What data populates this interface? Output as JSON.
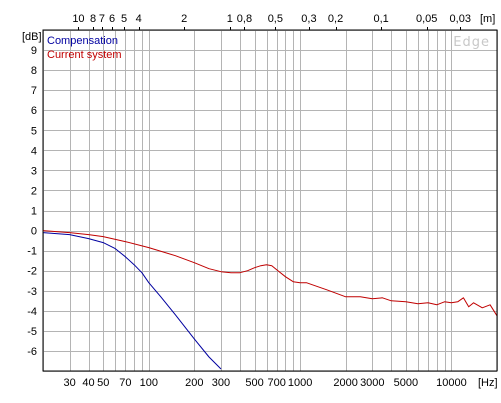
{
  "chart_data": {
    "type": "line",
    "x_scale": "log",
    "xlim": [
      20,
      20000
    ],
    "ylim": [
      -7,
      10
    ],
    "grid": true,
    "legend_placement": "top-left",
    "watermark": "Edge",
    "bottom_axis": {
      "unit": "[Hz]",
      "tick_values": [
        30,
        40,
        50,
        70,
        100,
        200,
        300,
        500,
        700,
        1000,
        2000,
        3000,
        5000,
        10000
      ],
      "tick_labels": [
        "30",
        "40",
        "50",
        "70",
        "100",
        "200",
        "300",
        "500",
        "700",
        "1000",
        "2000",
        "3000",
        "5000",
        "10000"
      ]
    },
    "top_axis": {
      "unit": "[m]",
      "quantity": "wavelength",
      "tick_values": [
        10,
        8,
        7,
        6,
        5,
        4,
        2,
        1,
        0.8,
        0.5,
        0.3,
        0.2,
        0.1,
        0.05,
        0.03
      ],
      "tick_labels": [
        "10",
        "8",
        "7",
        "6",
        "5",
        "4",
        "2",
        "1",
        "0,8",
        "0,5",
        "0,3",
        "0,2",
        "0,1",
        "0,05",
        "0,03"
      ]
    },
    "left_axis": {
      "unit": "[dB]",
      "tick_values": [
        9,
        8,
        7,
        6,
        5,
        4,
        3,
        2,
        1,
        0,
        -1,
        -2,
        -3,
        -4,
        -5,
        -6
      ],
      "tick_labels": [
        "9",
        "8",
        "7",
        "6",
        "5",
        "4",
        "3",
        "2",
        "1",
        "0",
        "-1",
        "-2",
        "-3",
        "-4",
        "-5",
        "-6"
      ]
    },
    "series": [
      {
        "name": "Compensation",
        "color": "#0000a0",
        "points": [
          [
            20,
            -0.1
          ],
          [
            30,
            -0.2
          ],
          [
            40,
            -0.4
          ],
          [
            50,
            -0.6
          ],
          [
            60,
            -0.9
          ],
          [
            70,
            -1.3
          ],
          [
            80,
            -1.7
          ],
          [
            90,
            -2.1
          ],
          [
            100,
            -2.6
          ],
          [
            120,
            -3.3
          ],
          [
            150,
            -4.2
          ],
          [
            200,
            -5.4
          ],
          [
            250,
            -6.3
          ],
          [
            300,
            -6.9
          ]
        ]
      },
      {
        "name": "Current system",
        "color": "#c00000",
        "points": [
          [
            20,
            0.0
          ],
          [
            30,
            -0.1
          ],
          [
            40,
            -0.2
          ],
          [
            50,
            -0.3
          ],
          [
            70,
            -0.55
          ],
          [
            100,
            -0.85
          ],
          [
            150,
            -1.25
          ],
          [
            200,
            -1.6
          ],
          [
            250,
            -1.9
          ],
          [
            300,
            -2.05
          ],
          [
            350,
            -2.1
          ],
          [
            400,
            -2.1
          ],
          [
            450,
            -2.0
          ],
          [
            500,
            -1.85
          ],
          [
            550,
            -1.75
          ],
          [
            600,
            -1.7
          ],
          [
            650,
            -1.75
          ],
          [
            700,
            -1.95
          ],
          [
            800,
            -2.3
          ],
          [
            900,
            -2.55
          ],
          [
            1000,
            -2.6
          ],
          [
            1100,
            -2.6
          ],
          [
            1200,
            -2.7
          ],
          [
            1500,
            -2.95
          ],
          [
            2000,
            -3.3
          ],
          [
            2500,
            -3.3
          ],
          [
            3000,
            -3.4
          ],
          [
            3500,
            -3.35
          ],
          [
            4000,
            -3.5
          ],
          [
            5000,
            -3.55
          ],
          [
            6000,
            -3.65
          ],
          [
            7000,
            -3.6
          ],
          [
            8000,
            -3.7
          ],
          [
            9000,
            -3.55
          ],
          [
            10000,
            -3.6
          ],
          [
            11000,
            -3.55
          ],
          [
            12000,
            -3.35
          ],
          [
            13000,
            -3.8
          ],
          [
            14000,
            -3.6
          ],
          [
            16000,
            -3.85
          ],
          [
            18000,
            -3.7
          ],
          [
            20000,
            -4.25
          ]
        ]
      }
    ]
  }
}
